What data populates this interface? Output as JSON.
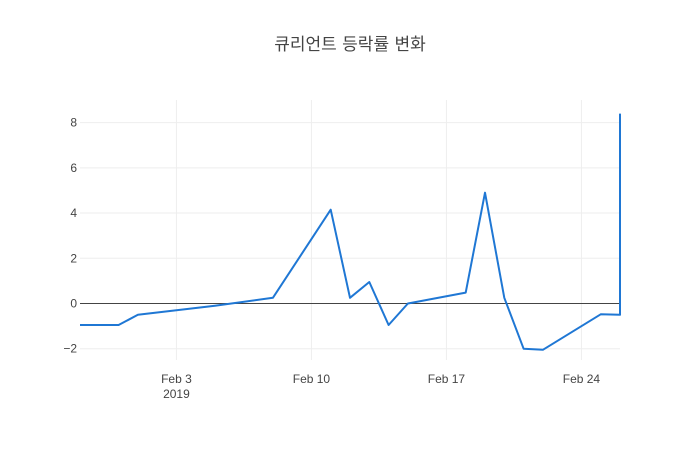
{
  "chart_data": {
    "type": "line",
    "title": "큐리언트 등락률 변화",
    "xlabel": "",
    "ylabel": "",
    "x_type": "date",
    "xlim": [
      "2019-01-29",
      "2019-02-26"
    ],
    "ylim": [
      -2.5,
      9
    ],
    "x_ticks": [
      {
        "date": "2019-02-03",
        "label": "Feb 3",
        "sublabel": "2019"
      },
      {
        "date": "2019-02-10",
        "label": "Feb 10",
        "sublabel": ""
      },
      {
        "date": "2019-02-17",
        "label": "Feb 17",
        "sublabel": ""
      },
      {
        "date": "2019-02-24",
        "label": "Feb 24",
        "sublabel": ""
      }
    ],
    "y_ticks": [
      -2,
      0,
      2,
      4,
      6,
      8
    ],
    "y_tick_labels": [
      "−2",
      "0",
      "2",
      "4",
      "6",
      "8"
    ],
    "zero_line": true,
    "grid": true,
    "series": [
      {
        "color": "#1f77d4",
        "x": [
          "2019-01-29",
          "2019-01-31",
          "2019-02-01",
          "2019-02-05",
          "2019-02-08",
          "2019-02-11",
          "2019-02-12",
          "2019-02-13",
          "2019-02-14",
          "2019-02-15",
          "2019-02-18",
          "2019-02-19",
          "2019-02-20",
          "2019-02-21",
          "2019-02-22",
          "2019-02-25",
          "2019-02-26",
          "2019-02-27"
        ],
        "values": [
          -0.95,
          -0.95,
          -0.5,
          -0.1,
          0.25,
          4.15,
          0.25,
          0.95,
          -0.95,
          0.0,
          0.48,
          4.9,
          0.25,
          -2.0,
          -2.05,
          -0.48,
          -0.5,
          8.4
        ]
      }
    ]
  }
}
